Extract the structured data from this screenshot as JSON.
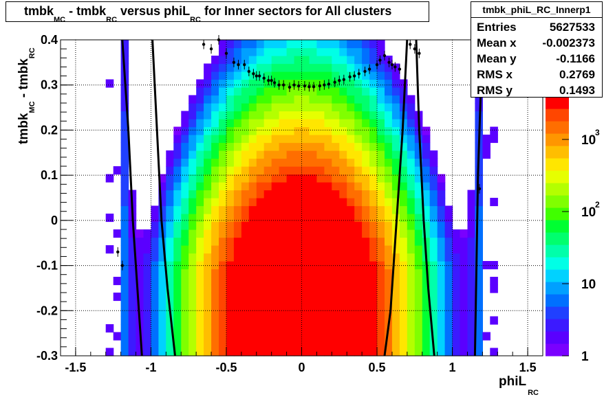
{
  "title": {
    "parts": [
      "tmbk",
      "MC",
      " - tmbk",
      "RC",
      " versus phiL",
      "RC",
      " for Inner sectors for All clusters"
    ]
  },
  "stats": {
    "name": "tmbk_phiL_RC_Innerp1",
    "rows": [
      {
        "key": "Entries",
        "value": "5627533"
      },
      {
        "key": "Mean x",
        "value": "-0.002373"
      },
      {
        "key": "Mean y",
        "value": "-0.1166"
      },
      {
        "key": "RMS x",
        "value": "0.2769"
      },
      {
        "key": "RMS y",
        "value": "0.1493"
      }
    ]
  },
  "axes": {
    "xlabel_main": "phiL",
    "xlabel_sub": "RC",
    "ylabel_parts": [
      "tmbk",
      "MC",
      " - tmbk",
      "RC"
    ]
  },
  "colors": {
    "palette": [
      "#7a00ff",
      "#5a00ff",
      "#3c1aff",
      "#2040ff",
      "#0070ff",
      "#00a0ff",
      "#00d2ff",
      "#00ffe6",
      "#00ffaa",
      "#00ff6e",
      "#00ff32",
      "#40ff00",
      "#80ff00",
      "#b4ff00",
      "#e6ff00",
      "#ffe600",
      "#ffbe00",
      "#ff9600",
      "#ff6e00",
      "#ff4600",
      "#ff0000"
    ]
  },
  "chart_data": {
    "type": "heatmap",
    "xlim": [
      -1.6,
      1.6
    ],
    "ylim": [
      -0.3,
      0.4
    ],
    "x_ticks": [
      "-1.5",
      "-1",
      "-0.5",
      "0",
      "0.5",
      "1",
      "1.5"
    ],
    "x_tick_values": [
      -1.5,
      -1,
      -0.5,
      0,
      0.5,
      1,
      1.5
    ],
    "y_ticks": [
      "-0.3",
      "-0.2",
      "-0.1",
      "0",
      "0.1",
      "0.2",
      "0.3",
      "0.4"
    ],
    "y_tick_values": [
      -0.3,
      -0.2,
      -0.1,
      0,
      0.1,
      0.2,
      0.3,
      0.4
    ],
    "z_scale": "log",
    "z_ticks": [
      "1",
      "10",
      "10",
      "10"
    ],
    "z_tick_exponents": [
      "",
      "",
      "2",
      "3"
    ],
    "z_tick_values": [
      1,
      10,
      100,
      1000
    ],
    "grid": true,
    "profile_points": [
      {
        "x": -1.22,
        "y": -0.07
      },
      {
        "x": -1.19,
        "y": -0.1
      },
      {
        "x": -0.65,
        "y": 0.39
      },
      {
        "x": -0.6,
        "y": 0.38
      },
      {
        "x": -0.55,
        "y": 0.4
      },
      {
        "x": -0.5,
        "y": 0.37
      },
      {
        "x": -0.45,
        "y": 0.35
      },
      {
        "x": -0.42,
        "y": 0.345
      },
      {
        "x": -0.38,
        "y": 0.345
      },
      {
        "x": -0.35,
        "y": 0.33
      },
      {
        "x": -0.32,
        "y": 0.325
      },
      {
        "x": -0.3,
        "y": 0.32
      },
      {
        "x": -0.28,
        "y": 0.32
      },
      {
        "x": -0.25,
        "y": 0.315
      },
      {
        "x": -0.22,
        "y": 0.31
      },
      {
        "x": -0.2,
        "y": 0.31
      },
      {
        "x": -0.18,
        "y": 0.305
      },
      {
        "x": -0.15,
        "y": 0.3
      },
      {
        "x": -0.12,
        "y": 0.3
      },
      {
        "x": -0.08,
        "y": 0.295
      },
      {
        "x": -0.05,
        "y": 0.3
      },
      {
        "x": -0.02,
        "y": 0.298
      },
      {
        "x": 0.02,
        "y": 0.298
      },
      {
        "x": 0.05,
        "y": 0.296
      },
      {
        "x": 0.08,
        "y": 0.296
      },
      {
        "x": 0.12,
        "y": 0.298
      },
      {
        "x": 0.15,
        "y": 0.3
      },
      {
        "x": 0.18,
        "y": 0.302
      },
      {
        "x": 0.22,
        "y": 0.306
      },
      {
        "x": 0.25,
        "y": 0.31
      },
      {
        "x": 0.28,
        "y": 0.312
      },
      {
        "x": 0.32,
        "y": 0.318
      },
      {
        "x": 0.35,
        "y": 0.32
      },
      {
        "x": 0.38,
        "y": 0.325
      },
      {
        "x": 0.42,
        "y": 0.33
      },
      {
        "x": 0.45,
        "y": 0.335
      },
      {
        "x": 0.5,
        "y": 0.345
      },
      {
        "x": 0.52,
        "y": 0.355
      },
      {
        "x": 0.55,
        "y": 0.365
      },
      {
        "x": 0.58,
        "y": 0.35
      },
      {
        "x": 0.6,
        "y": 0.345
      },
      {
        "x": 0.62,
        "y": 0.34
      },
      {
        "x": 0.65,
        "y": 0.335
      },
      {
        "x": 0.72,
        "y": 0.39
      },
      {
        "x": 0.75,
        "y": 0.38
      },
      {
        "x": 0.78,
        "y": 0.37
      },
      {
        "x": 1.18,
        "y": 0.07
      }
    ],
    "curves": [
      {
        "points": [
          [
            -1.19,
            0.4
          ],
          [
            -1.15,
            0.2
          ],
          [
            -1.12,
            0.0
          ],
          [
            -1.09,
            -0.15
          ],
          [
            -1.06,
            -0.3
          ]
        ]
      },
      {
        "points": [
          [
            -0.99,
            0.4
          ],
          [
            -0.96,
            0.2
          ],
          [
            -0.93,
            0.0
          ],
          [
            -0.89,
            -0.15
          ],
          [
            -0.84,
            -0.3
          ]
        ]
      },
      {
        "points": [
          [
            0.55,
            -0.3
          ],
          [
            0.59,
            -0.2
          ],
          [
            0.63,
            0.0
          ],
          [
            0.67,
            0.2
          ],
          [
            0.7,
            0.4
          ]
        ]
      },
      {
        "points": [
          [
            0.76,
            0.4
          ],
          [
            0.78,
            0.2
          ],
          [
            0.81,
            0.0
          ],
          [
            0.84,
            -0.15
          ],
          [
            0.88,
            -0.3
          ]
        ]
      },
      {
        "points": [
          [
            1.15,
            -0.3
          ],
          [
            1.16,
            -0.1
          ],
          [
            1.17,
            0.1
          ],
          [
            1.19,
            0.3
          ],
          [
            1.2,
            0.4
          ]
        ]
      }
    ]
  }
}
